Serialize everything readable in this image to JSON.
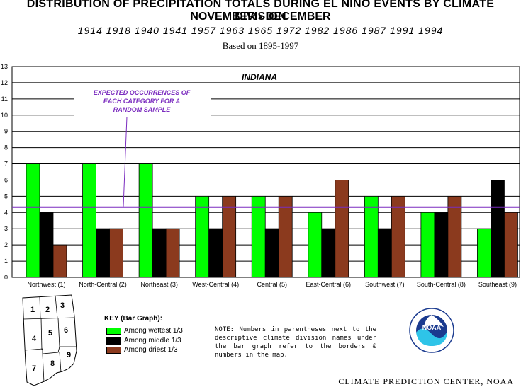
{
  "title": {
    "line1": "DISTRIBUTION OF PRECIPITATION TOTALS DURING EL NINO EVENTS BY CLIMATE DIVISION",
    "line2": "NOVEMBER - DECEMBER",
    "years": "1914  1918  1940  1941  1957  1963  1965  1972  1982  1986  1987  1991  1994",
    "basis": "Based on 1895-1997"
  },
  "chart_data": {
    "type": "bar",
    "title": "INDIANA",
    "categories": [
      "Northwest (1)",
      "North-Central (2)",
      "Northeast (3)",
      "West-Central (4)",
      "Central (5)",
      "East-Central (6)",
      "Southwest (7)",
      "South-Central (8)",
      "Southeast (9)"
    ],
    "series": [
      {
        "name": "Among wettest 1/3",
        "color": "#00ff00",
        "values": [
          7,
          7,
          7,
          5,
          5,
          4,
          5,
          4,
          3
        ]
      },
      {
        "name": "Among middle 1/3",
        "color": "#000000",
        "values": [
          4,
          3,
          3,
          3,
          3,
          3,
          3,
          4,
          6
        ]
      },
      {
        "name": "Among driest 1/3",
        "color": "#8b3a1e",
        "values": [
          2,
          3,
          3,
          5,
          5,
          6,
          5,
          5,
          4
        ]
      }
    ],
    "ylim": [
      0,
      13
    ],
    "yticks": [
      0,
      1,
      2,
      3,
      4,
      5,
      6,
      7,
      8,
      9,
      10,
      11,
      12,
      13
    ],
    "grid": true,
    "expected_line": {
      "value": 4.33,
      "color": "#7b2cbf",
      "label": "EXPECTED OCCURRENCES OF EACH CATEGORY FOR A RANDOM SAMPLE"
    }
  },
  "key": {
    "title": "KEY (Bar Graph):",
    "items": [
      {
        "label": "Among wettest 1/3",
        "color": "#00ff00"
      },
      {
        "label": "Among middle 1/3",
        "color": "#000000"
      },
      {
        "label": "Among driest 1/3",
        "color": "#8b3a1e"
      }
    ]
  },
  "map": {
    "division_numbers": [
      "1",
      "2",
      "3",
      "4",
      "5",
      "6",
      "7",
      "8",
      "9"
    ]
  },
  "note": "NOTE:  Numbers in parentheses next to the descriptive climate division names under the bar graph refer to the borders & numbers in the map.",
  "logo": {
    "text": "NOAA"
  },
  "credit": "CLIMATE PREDICTION CENTER, NOAA"
}
